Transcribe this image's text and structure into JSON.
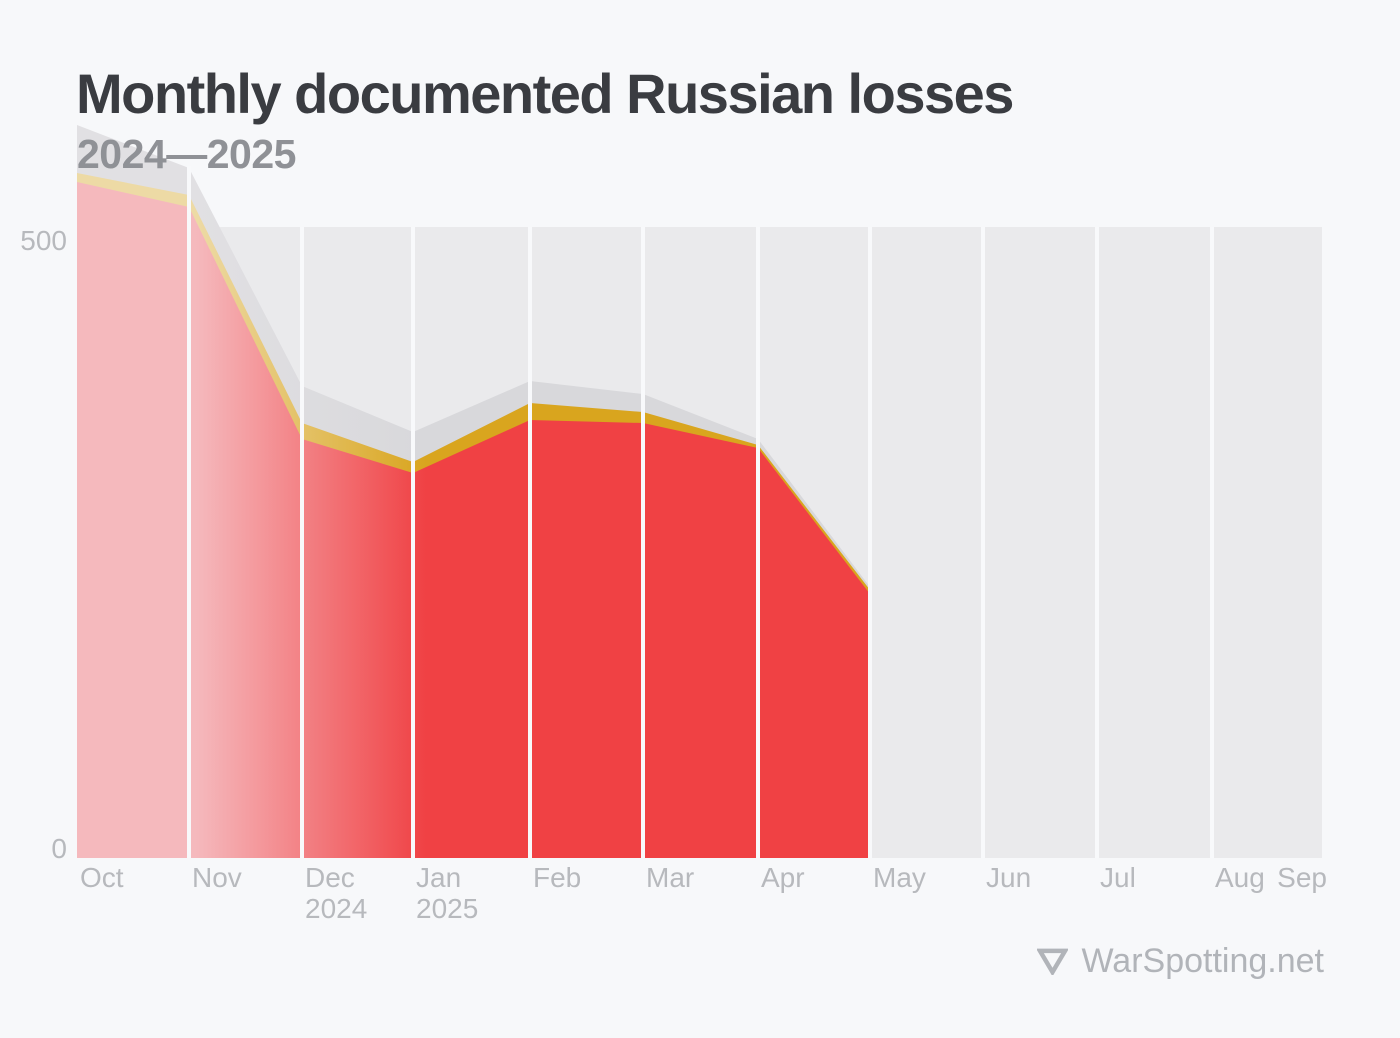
{
  "header": {
    "title": "Monthly documented Russian losses",
    "subtitle": "2024—2025"
  },
  "y_axis": {
    "tick_labels": [
      "500",
      "0"
    ]
  },
  "x_axis": {
    "labels": [
      {
        "label": "Oct"
      },
      {
        "label": "Nov"
      },
      {
        "label": "Dec",
        "sub": "2024"
      },
      {
        "label": "Jan",
        "sub": "2025"
      },
      {
        "label": "Feb"
      },
      {
        "label": "Mar"
      },
      {
        "label": "Apr"
      },
      {
        "label": "May"
      },
      {
        "label": "Jun"
      },
      {
        "label": "Jul"
      },
      {
        "label": "Aug"
      },
      {
        "label": "Sep"
      }
    ]
  },
  "footer": {
    "brand": "WarSpotting.net",
    "logo": "triangle-down-outline-icon"
  },
  "colors": {
    "page_bg": "#f7f8fa",
    "column_bg": "#eaeaec",
    "divider": "#f8f9fb",
    "title": "#3a3c41",
    "subtitle": "#8f9196",
    "axis_label": "#b7b9bd",
    "footer": "#b1b4b9"
  },
  "chart_data": {
    "type": "area",
    "stacked": true,
    "title": "Monthly documented Russian losses",
    "subtitle": "2024—2025",
    "categories": [
      "Oct",
      "Nov",
      "Dec",
      "Jan",
      "Feb",
      "Mar",
      "Apr",
      "May"
    ],
    "series": [
      {
        "name": "red-layer",
        "color": "#f04144",
        "faded_color": "#f5b9bd",
        "values": [
          550,
          529,
          341,
          313,
          356,
          354,
          333,
          215
        ]
      },
      {
        "name": "gold-layer",
        "color": "#d9a51e",
        "faded_color": "#eddaa5",
        "values": [
          7,
          10,
          13,
          9,
          14,
          9,
          3,
          3
        ]
      },
      {
        "name": "gray-layer",
        "color": "#d8d8db",
        "faded_color": "#e1e0e3",
        "values": [
          39,
          22,
          30,
          24,
          18,
          14,
          5,
          2
        ]
      }
    ],
    "stacked_totals": [
      596,
      561,
      384,
      346,
      388,
      377,
      341,
      220
    ],
    "x_boundary_months": [
      "Oct",
      "Nov",
      "Dec",
      "Jan",
      "Feb",
      "Mar",
      "Apr",
      "May",
      "Jun",
      "Jul",
      "Aug",
      "Sep"
    ],
    "y_ticks": [
      500,
      0
    ],
    "ylim": [
      0,
      500
    ],
    "legend": "none",
    "grid": "vertical month bands with light gaps",
    "fade_note": "all layers fade to pale tints over Oct–Nov, reaching full color by Jan"
  }
}
